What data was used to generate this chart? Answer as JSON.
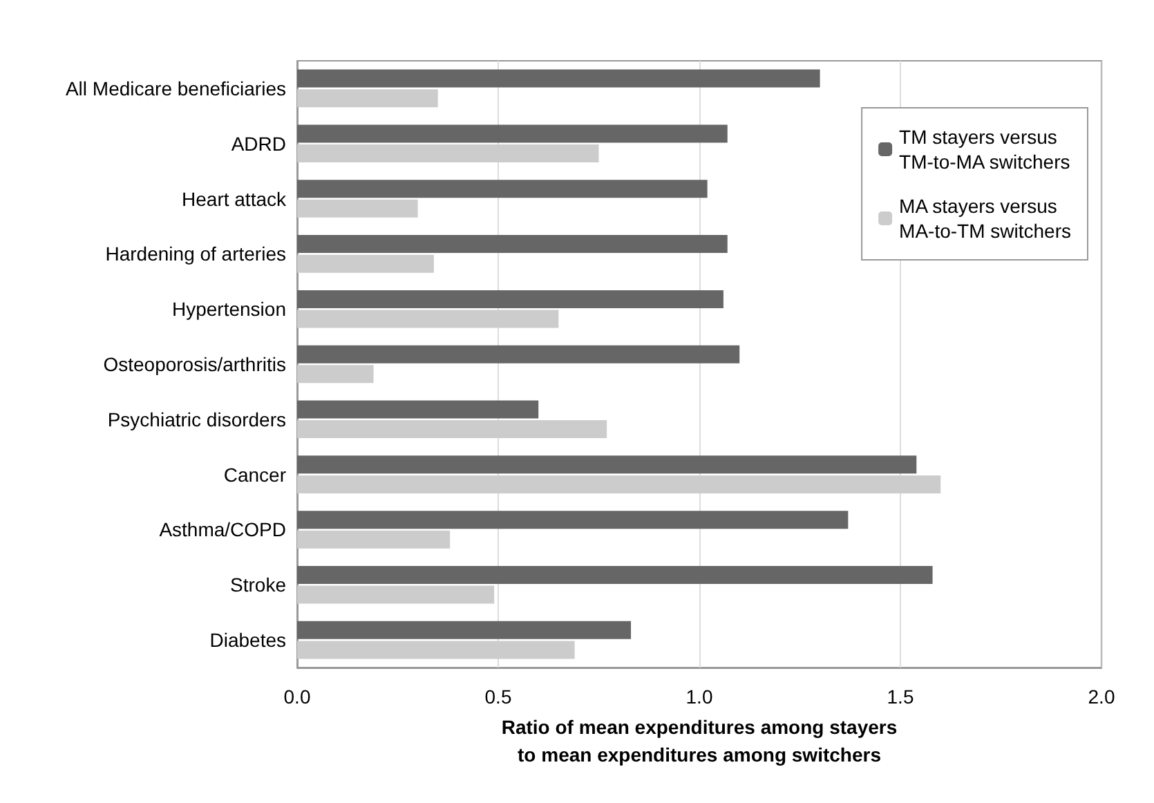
{
  "chart_data": {
    "type": "bar",
    "orientation": "horizontal",
    "xlabel": "Ratio of mean expenditures among stayers\nto mean expenditures among switchers",
    "categories": [
      "All Medicare beneficiaries",
      "ADRD",
      "Heart attack",
      "Hardening of arteries",
      "Hypertension",
      "Osteoporosis/arthritis",
      "Psychiatric disorders",
      "Cancer",
      "Asthma/COPD",
      "Stroke",
      "Diabetes"
    ],
    "series": [
      {
        "name": "TM stayers versus\nTM-to-MA switchers",
        "color": "#666666",
        "values": [
          1.3,
          1.07,
          1.02,
          1.07,
          1.06,
          1.1,
          0.6,
          1.54,
          1.37,
          1.58,
          0.83
        ]
      },
      {
        "name": "MA stayers versus\nMA-to-TM switchers",
        "color": "#cccccc",
        "values": [
          0.35,
          0.75,
          0.3,
          0.34,
          0.65,
          0.19,
          0.77,
          1.6,
          0.38,
          0.49,
          0.69
        ]
      }
    ],
    "xlim": [
      0,
      2
    ],
    "xticks": [
      {
        "value": 0,
        "label": "0.0"
      },
      {
        "value": 0.5,
        "label": "0.5"
      },
      {
        "value": 1,
        "label": "1.0"
      },
      {
        "value": 1.5,
        "label": "1.5"
      },
      {
        "value": 2,
        "label": "2.0"
      }
    ],
    "grid": "x",
    "legend": "top right"
  }
}
